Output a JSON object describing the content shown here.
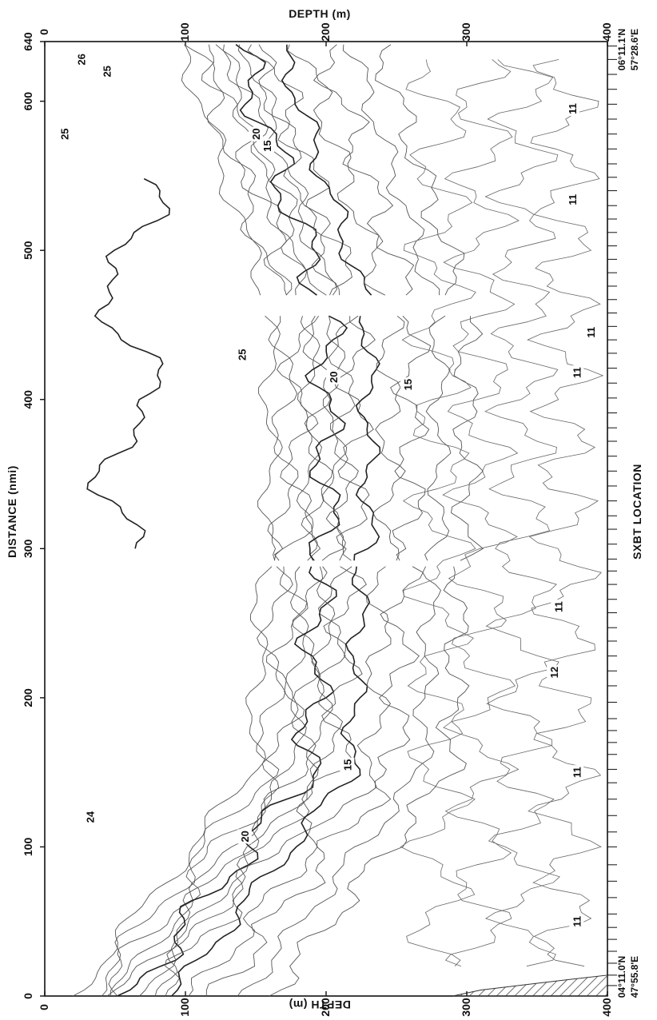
{
  "chart_data": {
    "type": "contour",
    "title": "",
    "xlabel": "DISTANCE (nmi)",
    "ylabel_left": "DEPTH (m)",
    "ylabel_right": "DEPTH (m)",
    "xlim": [
      0,
      640
    ],
    "ylim": [
      0,
      400
    ],
    "x_ticks": [
      "0",
      "100",
      "200",
      "300",
      "400",
      "500",
      "600",
      "640"
    ],
    "y_ticks_left": [
      "0",
      "100",
      "200",
      "300",
      "400"
    ],
    "y_ticks_right": [
      "0",
      "100",
      "200",
      "300",
      "400"
    ],
    "sxbt_label": "SXBT LOCATION",
    "sxbt_locations_nmi": [
      7,
      14,
      22,
      30,
      38,
      46,
      55,
      66,
      77,
      88,
      100,
      110,
      121,
      132,
      143,
      152,
      162,
      170,
      178,
      186,
      197,
      208,
      218,
      228,
      238,
      247,
      257,
      266,
      276,
      285,
      293,
      303,
      313,
      322,
      332,
      342,
      352,
      362,
      372,
      381,
      391,
      401,
      411,
      421,
      431,
      440,
      449,
      458,
      467,
      476,
      485,
      494,
      503,
      512,
      521,
      530,
      540,
      549,
      558,
      568,
      578,
      588,
      598,
      608,
      618,
      628,
      637
    ],
    "start_position": [
      "04°11.0'N",
      "47°55.8'E"
    ],
    "end_position": [
      "06°11.1'N",
      "57°28.6'E"
    ],
    "isotherm_labels": [
      {
        "text": "26",
        "distance_nmi": 628,
        "depth_m": 26
      },
      {
        "text": "25",
        "distance_nmi": 620,
        "depth_m": 44
      },
      {
        "text": "25",
        "distance_nmi": 578,
        "depth_m": 14
      },
      {
        "text": "20",
        "distance_nmi": 578,
        "depth_m": 150
      },
      {
        "text": "15",
        "distance_nmi": 570,
        "depth_m": 158
      },
      {
        "text": "11",
        "distance_nmi": 595,
        "depth_m": 375
      },
      {
        "text": "11",
        "distance_nmi": 534,
        "depth_m": 375
      },
      {
        "text": "25",
        "distance_nmi": 430,
        "depth_m": 140
      },
      {
        "text": "20",
        "distance_nmi": 415,
        "depth_m": 205
      },
      {
        "text": "15",
        "distance_nmi": 410,
        "depth_m": 258
      },
      {
        "text": "11",
        "distance_nmi": 445,
        "depth_m": 388
      },
      {
        "text": "11",
        "distance_nmi": 418,
        "depth_m": 378
      },
      {
        "text": "11",
        "distance_nmi": 261,
        "depth_m": 365
      },
      {
        "text": "12",
        "distance_nmi": 217,
        "depth_m": 362
      },
      {
        "text": "11",
        "distance_nmi": 150,
        "depth_m": 378
      },
      {
        "text": "15",
        "distance_nmi": 155,
        "depth_m": 215
      },
      {
        "text": "24",
        "distance_nmi": 120,
        "depth_m": 32
      },
      {
        "text": "20",
        "distance_nmi": 107,
        "depth_m": 142
      },
      {
        "text": "11",
        "distance_nmi": 50,
        "depth_m": 378
      }
    ],
    "bottom_hatch": true
  }
}
